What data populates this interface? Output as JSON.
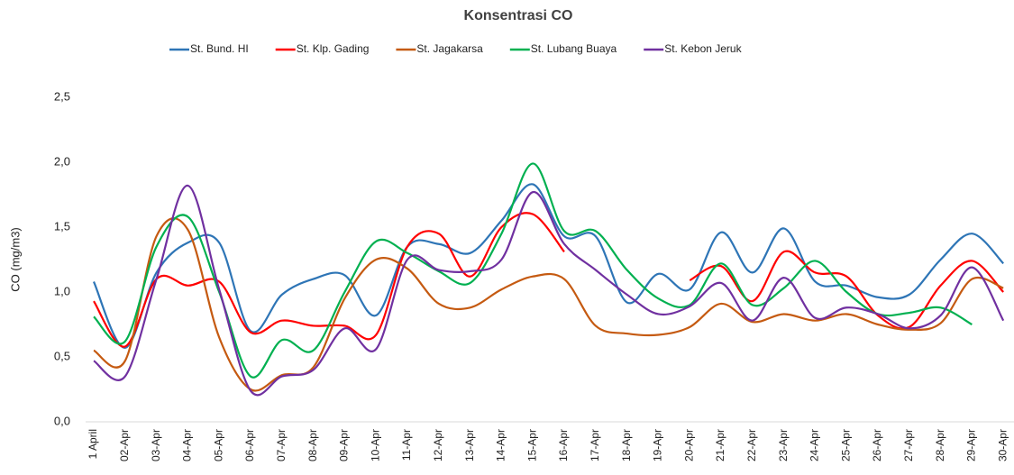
{
  "chart_data": {
    "type": "line",
    "title": "Konsentrasi CO",
    "y_label": "CO (mg/m3)",
    "categories": [
      "1 April",
      "02-Apr",
      "03-Apr",
      "04-Apr",
      "05-Apr",
      "06-Apr",
      "07-Apr",
      "08-Apr",
      "09-Apr",
      "10-Apr",
      "11-Apr",
      "12-Apr",
      "13-Apr",
      "14-Apr",
      "15-Apr",
      "16-Apr",
      "17-Apr",
      "18-Apr",
      "19-Apr",
      "20-Apr",
      "21-Apr",
      "22-Apr",
      "23-Apr",
      "24-Apr",
      "25-Apr",
      "26-Apr",
      "27-Apr",
      "28-Apr",
      "29-Apr",
      "30-Apr"
    ],
    "series": [
      {
        "name": "St. Bund. HI",
        "color": "#2e75b6",
        "values": [
          1.08,
          0.57,
          1.15,
          1.38,
          1.38,
          0.7,
          0.98,
          1.1,
          1.13,
          0.82,
          1.35,
          1.37,
          1.3,
          1.55,
          1.83,
          1.43,
          1.43,
          0.92,
          1.14,
          1.02,
          1.46,
          1.15,
          1.49,
          1.08,
          1.05,
          0.96,
          0.98,
          1.25,
          1.45,
          1.22
        ]
      },
      {
        "name": "St. Klp. Gading",
        "color": "#ff0000",
        "values": [
          0.93,
          0.58,
          1.1,
          1.05,
          1.08,
          0.69,
          0.78,
          0.74,
          0.74,
          0.67,
          1.35,
          1.45,
          1.12,
          1.5,
          1.6,
          1.31,
          null,
          null,
          null,
          1.09,
          1.2,
          0.93,
          1.31,
          1.15,
          1.12,
          0.82,
          0.73,
          1.05,
          1.24,
          1.0
        ]
      },
      {
        "name": "St. Jagakarsa",
        "color": "#c55a11",
        "values": [
          0.55,
          0.47,
          1.43,
          1.48,
          0.65,
          0.25,
          0.36,
          0.42,
          0.95,
          1.25,
          1.18,
          0.91,
          0.88,
          1.02,
          1.12,
          1.1,
          0.74,
          0.68,
          0.67,
          0.73,
          0.91,
          0.77,
          0.83,
          0.78,
          0.83,
          0.75,
          0.71,
          0.76,
          1.1,
          1.03
        ]
      },
      {
        "name": "St. Lubang Buaya",
        "color": "#00b050",
        "values": [
          0.81,
          0.62,
          1.35,
          1.58,
          1.0,
          0.35,
          0.63,
          0.55,
          1.0,
          1.39,
          1.3,
          1.16,
          1.07,
          1.45,
          1.99,
          1.47,
          1.47,
          1.17,
          0.95,
          0.9,
          1.22,
          0.9,
          1.03,
          1.24,
          1.0,
          0.83,
          0.84,
          0.88,
          0.75,
          null
        ]
      },
      {
        "name": "St. Kebon Jeruk",
        "color": "#7030a0",
        "values": [
          0.47,
          0.35,
          1.1,
          1.82,
          1.02,
          0.24,
          0.35,
          0.4,
          0.72,
          0.56,
          1.25,
          1.17,
          1.16,
          1.25,
          1.77,
          1.37,
          1.17,
          0.98,
          0.83,
          0.89,
          1.07,
          0.78,
          1.11,
          0.8,
          0.88,
          0.83,
          0.72,
          0.82,
          1.19,
          0.78
        ]
      }
    ],
    "ylim": [
      0,
      2.5
    ],
    "yticks": [
      {
        "value": 0,
        "label": "0,0"
      },
      {
        "value": 0.5,
        "label": "0,5"
      },
      {
        "value": 1,
        "label": "1,0"
      },
      {
        "value": 1.5,
        "label": "1,5"
      },
      {
        "value": 2,
        "label": "2,0"
      },
      {
        "value": 2.5,
        "label": "2,5"
      }
    ],
    "grid": false,
    "smooth": true,
    "legend": "top"
  }
}
